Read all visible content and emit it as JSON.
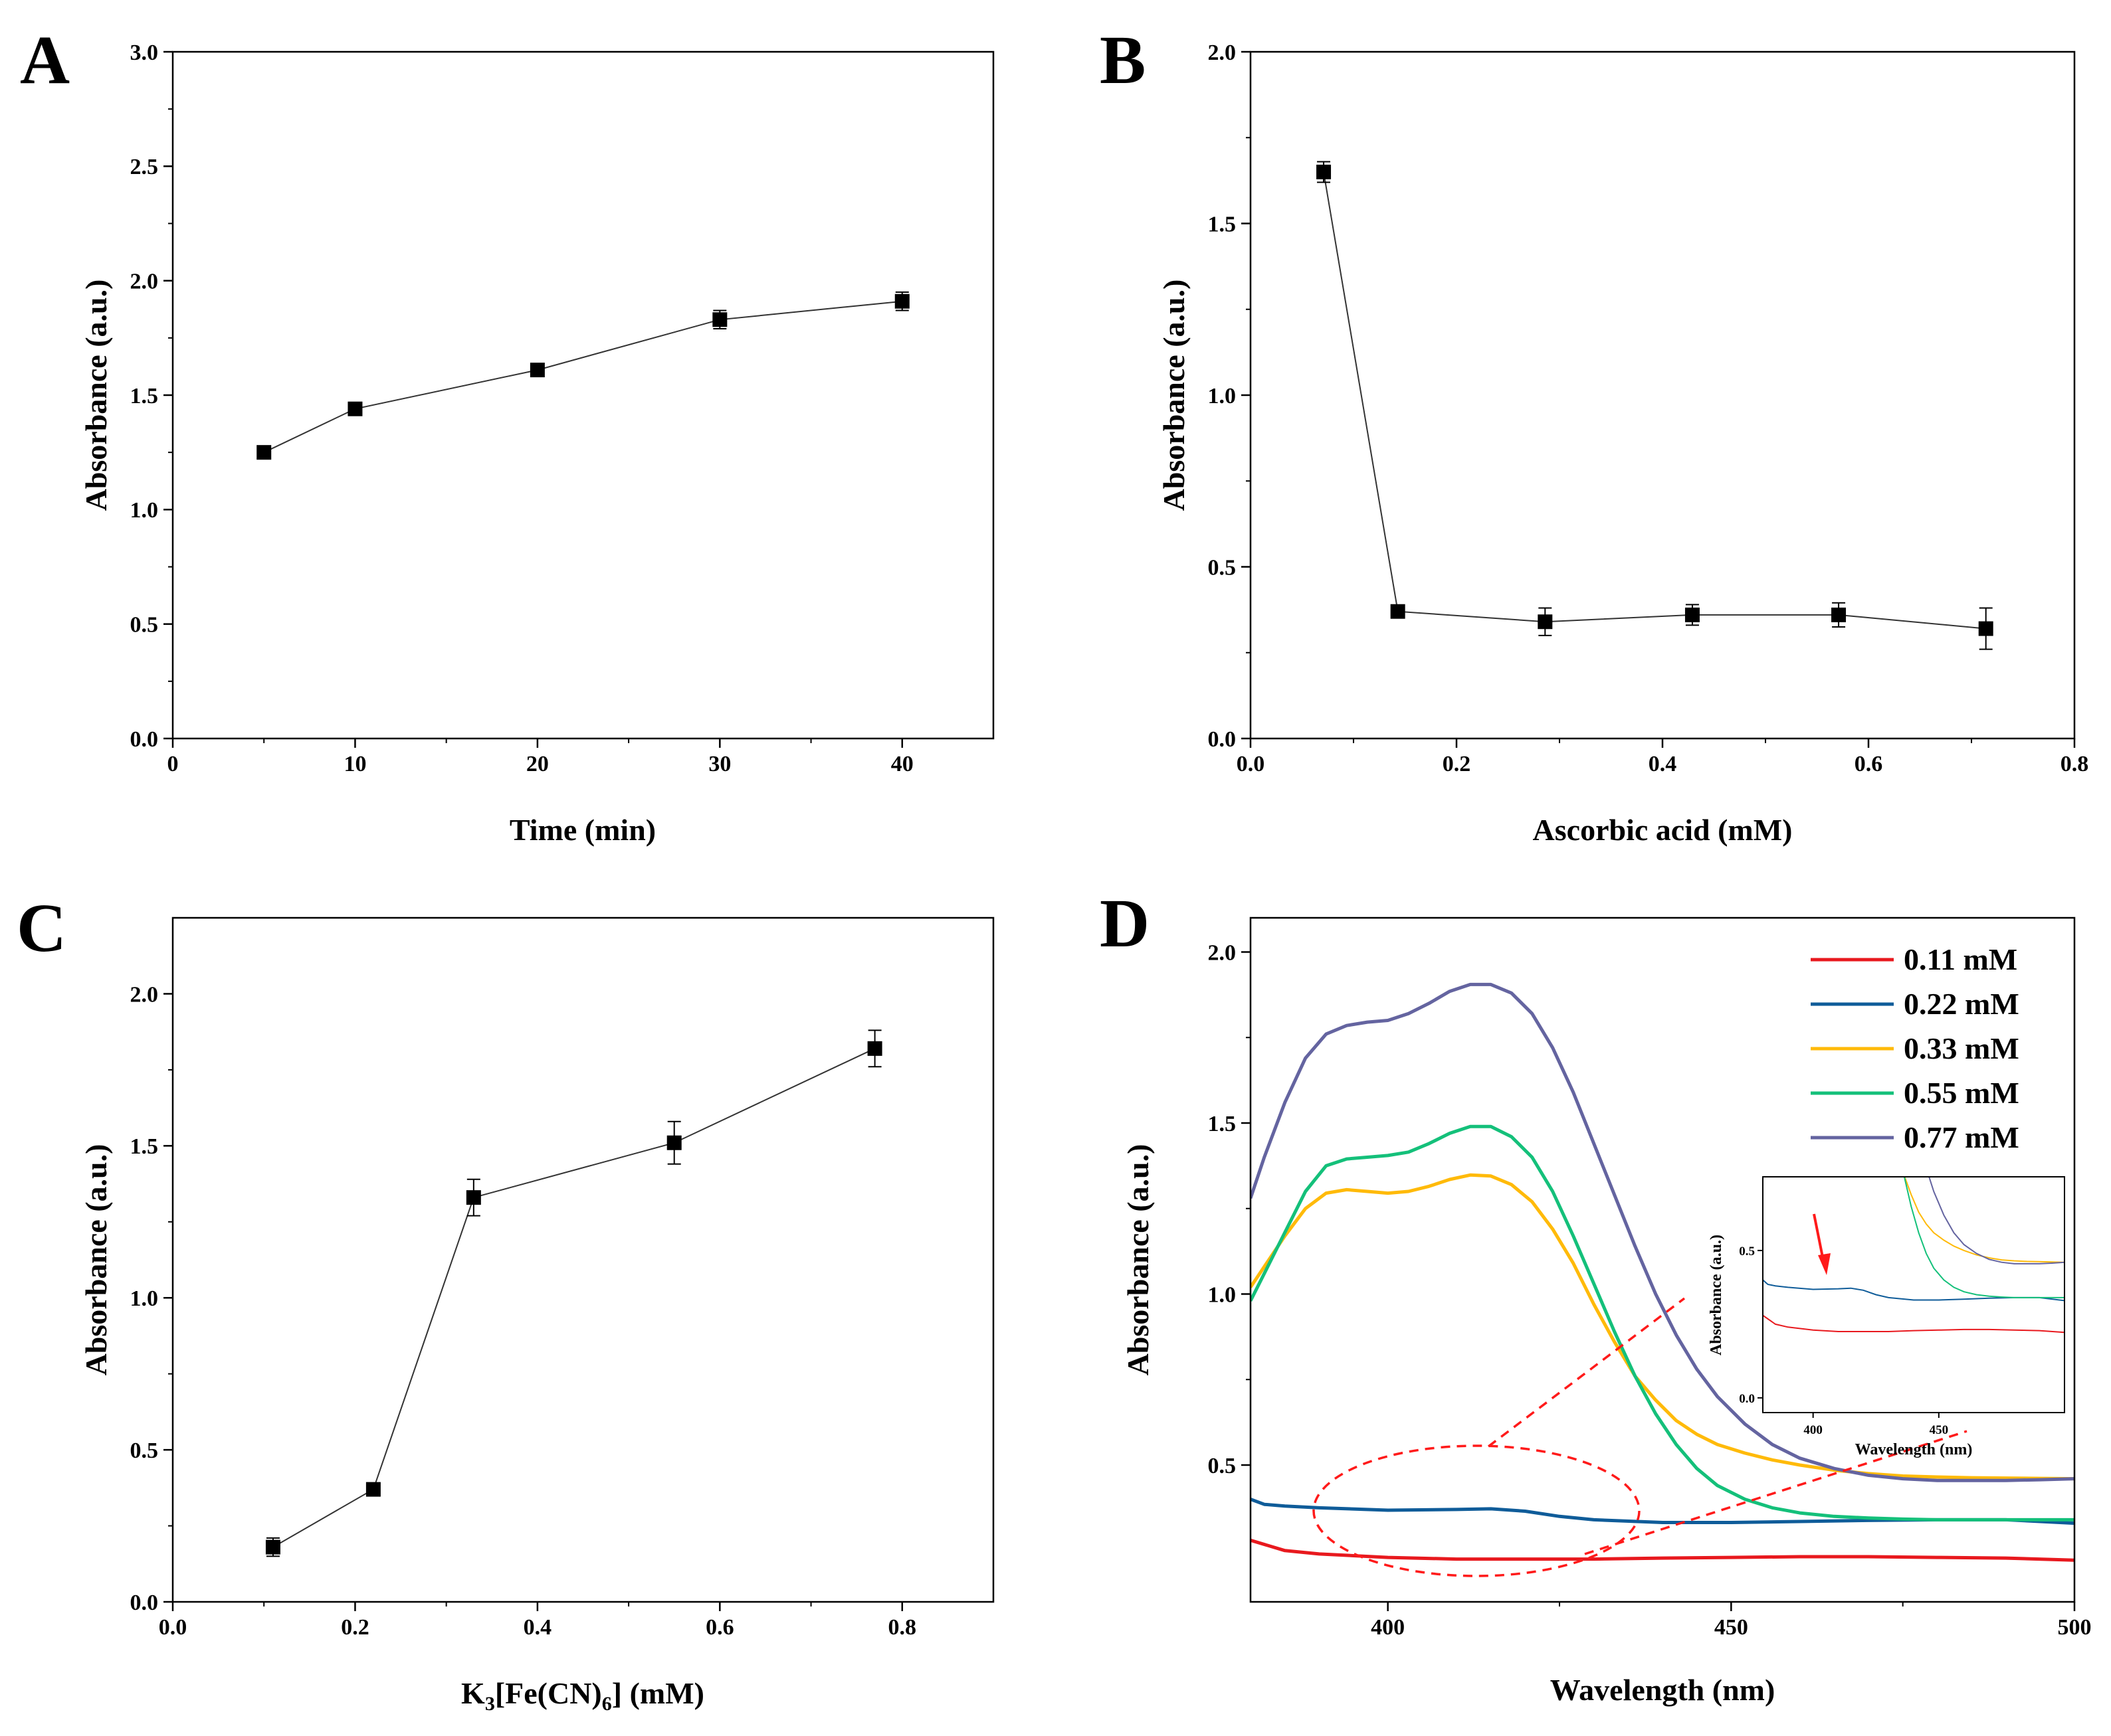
{
  "chart_data": [
    {
      "id": "A",
      "type": "line",
      "panel_label": "A",
      "title": "",
      "xlabel": "Time (min)",
      "ylabel": "Absorbance (a.u.)",
      "xlim": [
        0,
        45
      ],
      "ylim": [
        0,
        3.0
      ],
      "xticks": [
        0,
        10,
        20,
        30,
        40
      ],
      "xtick_labels": [
        "0",
        "10",
        "20",
        "30",
        "40"
      ],
      "yticks": [
        0,
        0.5,
        1.0,
        1.5,
        2.0,
        2.5,
        3.0
      ],
      "ytick_labels": [
        "0.0",
        "0.5",
        "1.0",
        "1.5",
        "2.0",
        "2.5",
        "3.0"
      ],
      "grid": false,
      "series": [
        {
          "name": "Absorbance",
          "x": [
            5,
            10,
            20,
            30,
            40
          ],
          "y": [
            1.25,
            1.44,
            1.61,
            1.83,
            1.91
          ],
          "yerr": [
            0.02,
            0.02,
            0.02,
            0.04,
            0.04
          ]
        }
      ]
    },
    {
      "id": "B",
      "type": "line",
      "panel_label": "B",
      "title": "",
      "xlabel": "Ascorbic acid (mM)",
      "ylabel": "Absorbance (a.u.)",
      "xlim": [
        0,
        0.8
      ],
      "ylim": [
        0,
        2.0
      ],
      "xticks": [
        0,
        0.2,
        0.4,
        0.6,
        0.8
      ],
      "xtick_labels": [
        "0.0",
        "0.2",
        "0.4",
        "0.6",
        "0.8"
      ],
      "yticks": [
        0,
        0.5,
        1.0,
        1.5,
        2.0
      ],
      "ytick_labels": [
        "0.0",
        "0.5",
        "1.0",
        "1.5",
        "2.0"
      ],
      "grid": false,
      "series": [
        {
          "name": "Absorbance",
          "x": [
            0.071,
            0.143,
            0.286,
            0.429,
            0.571,
            0.714
          ],
          "y": [
            1.65,
            0.37,
            0.34,
            0.36,
            0.36,
            0.32
          ],
          "yerr": [
            0.03,
            0.015,
            0.04,
            0.03,
            0.035,
            0.06
          ]
        }
      ]
    },
    {
      "id": "C",
      "type": "line",
      "panel_label": "C",
      "title": "",
      "xlabel": "K3[Fe(CN)6] (mM)",
      "xlabel_parts": {
        "a": "K",
        "b": "3",
        "c": "[Fe(CN)",
        "d": "6",
        "e": "] (mM)"
      },
      "ylabel": "Absorbance (a.u.)",
      "xlim": [
        0,
        0.9
      ],
      "ylim": [
        0,
        2.25
      ],
      "xticks": [
        0,
        0.2,
        0.4,
        0.6,
        0.8
      ],
      "xtick_labels": [
        "0.0",
        "0.2",
        "0.4",
        "0.6",
        "0.8"
      ],
      "yticks": [
        0,
        0.5,
        1.0,
        1.5,
        2.0
      ],
      "ytick_labels": [
        "0.0",
        "0.5",
        "1.0",
        "1.5",
        "2.0"
      ],
      "grid": false,
      "series": [
        {
          "name": "Absorbance",
          "x": [
            0.11,
            0.22,
            0.33,
            0.55,
            0.77
          ],
          "y": [
            0.18,
            0.37,
            1.33,
            1.51,
            1.82
          ],
          "yerr": [
            0.03,
            0.015,
            0.06,
            0.07,
            0.06
          ]
        }
      ]
    },
    {
      "id": "D",
      "type": "line",
      "panel_label": "D",
      "title": "",
      "xlabel": "Wavelength (nm)",
      "ylabel": "Absorbance (a.u.)",
      "xlim": [
        380,
        500
      ],
      "ylim": [
        0.1,
        2.1
      ],
      "xticks": [
        400,
        450,
        500
      ],
      "xtick_labels": [
        "400",
        "450",
        "500"
      ],
      "yticks": [
        0.5,
        1.0,
        1.5,
        2.0
      ],
      "ytick_labels": [
        "0.5",
        "1.0",
        "1.5",
        "2.0"
      ],
      "grid": false,
      "legend_position": "top-right",
      "series": [
        {
          "name": "0.11 mM",
          "color": "#e8191e",
          "x": [
            380,
            385,
            390,
            400,
            410,
            420,
            430,
            440,
            450,
            460,
            470,
            480,
            490,
            500
          ],
          "y": [
            0.28,
            0.25,
            0.24,
            0.23,
            0.225,
            0.225,
            0.225,
            0.228,
            0.23,
            0.232,
            0.232,
            0.23,
            0.228,
            0.222
          ]
        },
        {
          "name": "0.22 mM",
          "color": "#0f5c99",
          "x": [
            380,
            382,
            385,
            390,
            400,
            410,
            415,
            420,
            425,
            430,
            440,
            450,
            460,
            470,
            480,
            490,
            500
          ],
          "y": [
            0.4,
            0.385,
            0.38,
            0.375,
            0.368,
            0.37,
            0.372,
            0.365,
            0.35,
            0.34,
            0.332,
            0.332,
            0.335,
            0.338,
            0.34,
            0.34,
            0.33
          ]
        },
        {
          "name": "0.33 mM",
          "color": "#ffba09",
          "x": [
            380,
            382,
            385,
            388,
            391,
            394,
            397,
            400,
            403,
            406,
            409,
            412,
            415,
            418,
            421,
            424,
            427,
            430,
            433,
            436,
            439,
            442,
            445,
            448,
            452,
            456,
            460,
            465,
            470,
            475,
            480,
            485,
            490,
            495,
            500
          ],
          "y": [
            1.02,
            1.08,
            1.17,
            1.25,
            1.295,
            1.305,
            1.3,
            1.295,
            1.3,
            1.315,
            1.335,
            1.348,
            1.345,
            1.32,
            1.27,
            1.19,
            1.09,
            0.97,
            0.86,
            0.76,
            0.69,
            0.63,
            0.59,
            0.56,
            0.535,
            0.515,
            0.5,
            0.485,
            0.475,
            0.468,
            0.465,
            0.463,
            0.462,
            0.461,
            0.46
          ]
        },
        {
          "name": "0.55 mM",
          "color": "#14c07a",
          "x": [
            380,
            382,
            385,
            388,
            391,
            394,
            397,
            400,
            403,
            406,
            409,
            412,
            415,
            418,
            421,
            424,
            427,
            430,
            433,
            436,
            439,
            442,
            445,
            448,
            452,
            456,
            460,
            465,
            470,
            475,
            480,
            490,
            500
          ],
          "y": [
            0.98,
            1.06,
            1.18,
            1.3,
            1.375,
            1.395,
            1.4,
            1.405,
            1.415,
            1.44,
            1.47,
            1.49,
            1.49,
            1.46,
            1.4,
            1.3,
            1.17,
            1.03,
            0.89,
            0.76,
            0.65,
            0.56,
            0.49,
            0.44,
            0.4,
            0.375,
            0.36,
            0.35,
            0.345,
            0.342,
            0.34,
            0.34,
            0.34
          ]
        },
        {
          "name": "0.77 mM",
          "color": "#6464a0",
          "x": [
            380,
            382,
            385,
            388,
            391,
            394,
            397,
            400,
            403,
            406,
            409,
            412,
            415,
            418,
            421,
            424,
            427,
            430,
            433,
            436,
            439,
            442,
            445,
            448,
            452,
            456,
            460,
            465,
            470,
            475,
            480,
            485,
            490,
            495,
            500
          ],
          "y": [
            1.28,
            1.4,
            1.56,
            1.69,
            1.76,
            1.785,
            1.795,
            1.8,
            1.82,
            1.85,
            1.885,
            1.905,
            1.905,
            1.88,
            1.82,
            1.72,
            1.59,
            1.44,
            1.29,
            1.14,
            1.0,
            0.88,
            0.78,
            0.7,
            0.62,
            0.56,
            0.52,
            0.49,
            0.47,
            0.46,
            0.455,
            0.455,
            0.455,
            0.457,
            0.46
          ]
        }
      ],
      "inset": {
        "xlabel": "Wavelength (nm)",
        "ylabel": "Absorbance (a.u.)",
        "xlim": [
          380,
          500
        ],
        "ylim": [
          -0.05,
          0.75
        ],
        "xticks": [
          400,
          450
        ],
        "xtick_labels": [
          "400",
          "450"
        ],
        "yticks": [
          0.0,
          0.5
        ],
        "ytick_labels": [
          "0.0",
          "0.5"
        ],
        "annotation": "red arrow pointing to the 0.22 mM curve near 410 nm"
      }
    }
  ]
}
